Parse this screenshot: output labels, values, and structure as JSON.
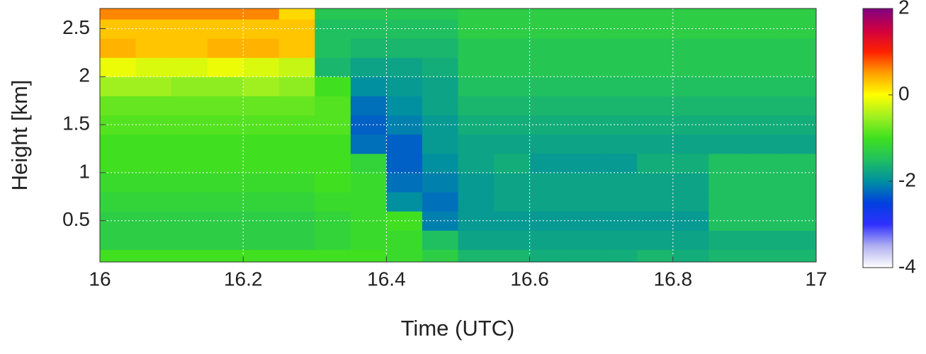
{
  "chart_data": {
    "type": "heatmap",
    "xlabel": "Time (UTC)",
    "ylabel": "Height [km]",
    "x": [
      16.025,
      16.075,
      16.125,
      16.175,
      16.225,
      16.275,
      16.325,
      16.375,
      16.425,
      16.475,
      16.525,
      16.575,
      16.625,
      16.675,
      16.725,
      16.775,
      16.825,
      16.875,
      16.925,
      16.975
    ],
    "y": [
      0.1,
      0.3,
      0.5,
      0.7,
      0.9,
      1.1,
      1.3,
      1.5,
      1.7,
      1.9,
      2.1,
      2.3,
      2.5,
      2.7
    ],
    "z": [
      [
        -1.0,
        -1.0,
        -1.0,
        -1.0,
        -1.0,
        -1.0,
        -1.0,
        -1.0,
        -1.1,
        -1.3,
        -1.6,
        -1.6,
        -1.7,
        -1.7,
        -1.7,
        -1.6,
        -1.7,
        -1.6,
        -1.6,
        -1.6
      ],
      [
        -1.3,
        -1.3,
        -1.3,
        -1.3,
        -1.3,
        -1.3,
        -1.2,
        -1.1,
        -1.1,
        -1.5,
        -1.8,
        -1.8,
        -1.8,
        -1.8,
        -1.8,
        -1.8,
        -1.8,
        -1.7,
        -1.7,
        -1.7
      ],
      [
        -1.3,
        -1.3,
        -1.3,
        -1.3,
        -1.3,
        -1.3,
        -1.2,
        -1.1,
        -1.0,
        -2.1,
        -1.9,
        -1.9,
        -1.9,
        -1.9,
        -1.9,
        -1.9,
        -1.9,
        -1.5,
        -1.5,
        -1.5
      ],
      [
        -1.2,
        -1.2,
        -1.2,
        -1.2,
        -1.2,
        -1.2,
        -1.1,
        -1.1,
        -2.0,
        -2.2,
        -1.9,
        -1.8,
        -1.8,
        -1.8,
        -1.8,
        -1.8,
        -1.8,
        -1.5,
        -1.5,
        -1.5
      ],
      [
        -1.1,
        -1.1,
        -1.1,
        -1.1,
        -1.1,
        -1.1,
        -1.0,
        -1.1,
        -2.2,
        -2.1,
        -1.9,
        -1.8,
        -1.8,
        -1.8,
        -1.8,
        -1.8,
        -1.8,
        -1.5,
        -1.5,
        -1.5
      ],
      [
        -1.0,
        -1.0,
        -1.0,
        -1.0,
        -1.0,
        -1.0,
        -1.0,
        -1.2,
        -2.3,
        -2.0,
        -1.8,
        -1.7,
        -1.9,
        -1.9,
        -1.9,
        -1.7,
        -1.7,
        -1.5,
        -1.5,
        -1.5
      ],
      [
        -1.0,
        -1.0,
        -1.0,
        -1.0,
        -1.0,
        -1.0,
        -1.0,
        -2.2,
        -2.3,
        -1.9,
        -1.8,
        -1.8,
        -1.8,
        -1.8,
        -1.8,
        -1.8,
        -1.8,
        -1.8,
        -1.8,
        -1.8
      ],
      [
        -0.9,
        -0.9,
        -0.9,
        -0.9,
        -0.9,
        -0.9,
        -0.9,
        -2.3,
        -2.1,
        -1.9,
        -1.7,
        -1.7,
        -1.7,
        -1.7,
        -1.7,
        -1.7,
        -1.7,
        -1.7,
        -1.7,
        -1.7
      ],
      [
        -0.8,
        -0.8,
        -0.8,
        -0.8,
        -0.8,
        -0.8,
        -0.9,
        -2.2,
        -2.0,
        -1.8,
        -1.6,
        -1.6,
        -1.6,
        -1.6,
        -1.6,
        -1.6,
        -1.6,
        -1.6,
        -1.6,
        -1.6
      ],
      [
        -0.5,
        -0.5,
        -0.6,
        -0.6,
        -0.5,
        -0.6,
        -1.0,
        -2.0,
        -1.9,
        -1.8,
        -1.5,
        -1.5,
        -1.5,
        -1.5,
        -1.5,
        -1.5,
        -1.5,
        -1.5,
        -1.5,
        -1.5
      ],
      [
        -0.1,
        -0.2,
        -0.2,
        -0.1,
        -0.2,
        -0.3,
        -1.6,
        -1.8,
        -1.8,
        -1.7,
        -1.4,
        -1.4,
        -1.4,
        -1.4,
        -1.4,
        -1.4,
        -1.4,
        -1.4,
        -1.4,
        -1.4
      ],
      [
        0.4,
        0.3,
        0.3,
        0.4,
        0.4,
        0.3,
        -1.5,
        -1.6,
        -1.6,
        -1.6,
        -1.4,
        -1.4,
        -1.4,
        -1.4,
        -1.4,
        -1.4,
        -1.4,
        -1.4,
        -1.4,
        -1.4
      ],
      [
        0.3,
        0.3,
        0.3,
        0.3,
        0.3,
        0.3,
        -1.5,
        -1.5,
        -1.5,
        -1.5,
        -1.3,
        -1.3,
        -1.3,
        -1.3,
        -1.3,
        -1.3,
        -1.3,
        -1.3,
        -1.3,
        -1.3
      ],
      [
        0.6,
        0.6,
        0.6,
        0.6,
        0.6,
        0.2,
        -1.4,
        -1.4,
        -1.4,
        -1.4,
        -1.3,
        -1.3,
        -1.3,
        -1.3,
        -1.3,
        -1.3,
        -1.3,
        -1.3,
        -1.3,
        -1.3
      ]
    ],
    "xlim": [
      16,
      17
    ],
    "xticks": [
      16,
      16.2,
      16.4,
      16.6,
      16.8,
      17
    ],
    "ylim": [
      0.07,
      2.71
    ],
    "yticks": [
      0.5,
      1,
      1.5,
      2,
      2.5
    ],
    "clim": [
      -4,
      2
    ],
    "cticks": [
      -4,
      -2,
      0,
      2
    ],
    "colormap": [
      "#ffffff",
      "#b0b0f0",
      "#3030ff",
      "#0040e0",
      "#0090a0",
      "#20c060",
      "#40e020",
      "#a0f020",
      "#ffff00",
      "#ffa000",
      "#ff2000",
      "#d00040",
      "#800080"
    ],
    "grid": true
  }
}
